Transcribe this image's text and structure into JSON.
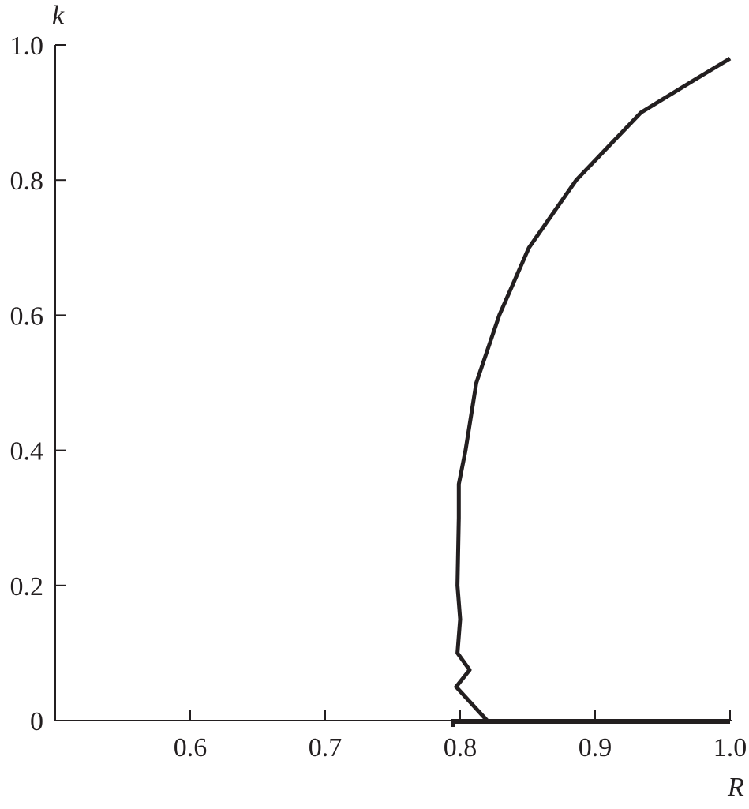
{
  "chart_data": {
    "type": "line",
    "title": "",
    "xlabel": "R",
    "ylabel": "k",
    "xlim": [
      0.5,
      1.0
    ],
    "ylim": [
      0,
      1.0
    ],
    "x_ticks": [
      "0.6",
      "0.7",
      "0.8",
      "0.9",
      "1.0"
    ],
    "y_ticks": [
      "0",
      "0.2",
      "0.4",
      "0.6",
      "0.8",
      "1.0"
    ],
    "grid": false,
    "line_color": "#231f20",
    "series": [
      {
        "R": [
          0.82,
          0.797,
          0.807,
          0.798,
          0.8,
          0.798,
          0.799,
          0.799,
          0.804,
          0.812,
          0.829,
          0.851,
          0.886,
          0.934,
          0.975,
          1.0
        ],
        "k": [
          0.0,
          0.05,
          0.075,
          0.1,
          0.15,
          0.2,
          0.3,
          0.35,
          0.4,
          0.5,
          0.6,
          0.7,
          0.8,
          0.9,
          0.95,
          0.98
        ]
      },
      {
        "R": [
          0.793,
          1.0
        ],
        "k": [
          0.0,
          0.0
        ]
      }
    ]
  }
}
